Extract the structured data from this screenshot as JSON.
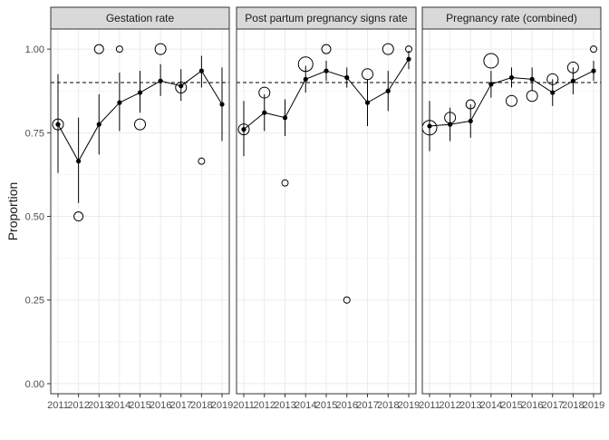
{
  "chart_data": {
    "type": "scatter",
    "ylabel": "Proportion",
    "xlabel": "",
    "ylim": [
      -0.03,
      1.06
    ],
    "yticks": [
      "0.00",
      "0.25",
      "0.50",
      "0.75",
      "1.00"
    ],
    "ytick_values": [
      0,
      0.25,
      0.5,
      0.75,
      1.0
    ],
    "x_categories": [
      "2011",
      "2012",
      "2013",
      "2014",
      "2015",
      "2016",
      "2017",
      "2018",
      "2019"
    ],
    "reference_line": 0.9,
    "grid": true,
    "panels": [
      {
        "title": "Gestation rate",
        "estimate": [
          0.775,
          0.665,
          0.775,
          0.84,
          0.87,
          0.905,
          0.89,
          0.935,
          0.835
        ],
        "lower": [
          0.63,
          0.54,
          0.685,
          0.755,
          0.81,
          0.86,
          0.845,
          0.885,
          0.725
        ],
        "upper": [
          0.925,
          0.795,
          0.865,
          0.93,
          0.935,
          0.955,
          0.94,
          0.98,
          0.945
        ],
        "observed": [
          0.775,
          0.5,
          1.0,
          1.0,
          0.775,
          1.0,
          0.885,
          0.665,
          null
        ],
        "observed_size": [
          3,
          2,
          2,
          1,
          3,
          3,
          3,
          1,
          null
        ]
      },
      {
        "title": "Post partum pregnancy signs rate",
        "estimate": [
          0.76,
          0.81,
          0.795,
          0.91,
          0.935,
          0.915,
          0.84,
          0.875,
          0.97
        ],
        "lower": [
          0.68,
          0.755,
          0.74,
          0.87,
          0.905,
          0.885,
          0.77,
          0.815,
          0.94
        ],
        "upper": [
          0.845,
          0.865,
          0.85,
          0.95,
          0.965,
          0.945,
          0.91,
          0.935,
          0.995
        ],
        "observed": [
          0.76,
          0.87,
          0.6,
          0.955,
          1.0,
          0.25,
          0.925,
          1.0,
          1.0
        ],
        "observed_size": [
          3,
          3,
          1,
          4,
          2,
          1,
          3,
          3,
          1
        ]
      },
      {
        "title": "Pregnancy rate (combined)",
        "estimate": [
          0.77,
          0.775,
          0.785,
          0.895,
          0.915,
          0.91,
          0.87,
          0.905,
          0.935
        ],
        "lower": [
          0.695,
          0.725,
          0.735,
          0.855,
          0.885,
          0.875,
          0.83,
          0.865,
          0.905
        ],
        "upper": [
          0.845,
          0.825,
          0.835,
          0.935,
          0.945,
          0.945,
          0.91,
          0.945,
          0.965
        ],
        "observed": [
          0.765,
          0.795,
          0.835,
          0.965,
          0.845,
          0.86,
          0.91,
          0.945,
          1.0
        ],
        "observed_size": [
          4,
          3,
          2,
          4,
          3,
          3,
          3,
          3,
          1
        ]
      }
    ]
  }
}
